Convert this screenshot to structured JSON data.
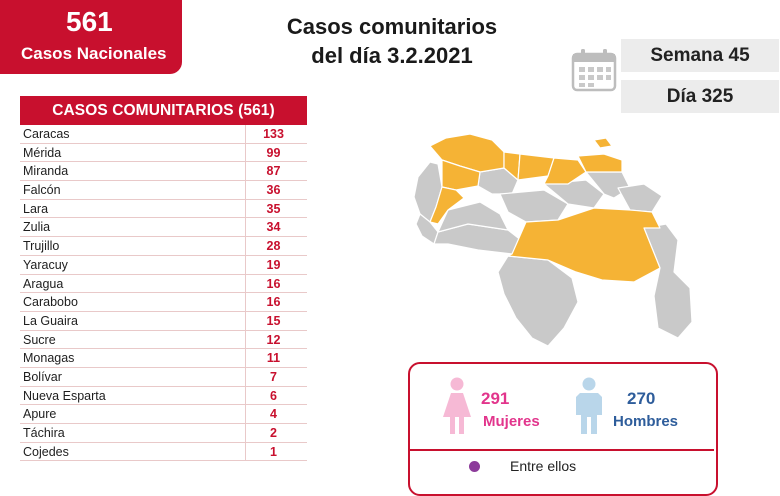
{
  "national": {
    "number": "561",
    "label": "Casos Nacionales"
  },
  "title": {
    "line1": "Casos comunitarios",
    "line2": "del día 3.2.2021"
  },
  "calendar": {
    "icon": "calendar-icon"
  },
  "week": {
    "label": "Semana 45"
  },
  "day": {
    "label": "Día 325"
  },
  "table": {
    "header": "CASOS COMUNITARIOS (561)",
    "rows": [
      {
        "state": "Caracas",
        "cases": "133"
      },
      {
        "state": "Mérida",
        "cases": "99"
      },
      {
        "state": "Miranda",
        "cases": "87"
      },
      {
        "state": "Falcón",
        "cases": "36"
      },
      {
        "state": "Lara",
        "cases": "35"
      },
      {
        "state": "Zulia",
        "cases": "34"
      },
      {
        "state": "Trujillo",
        "cases": "28"
      },
      {
        "state": "Yaracuy",
        "cases": "19"
      },
      {
        "state": "Aragua",
        "cases": "16"
      },
      {
        "state": "Carabobo",
        "cases": "16"
      },
      {
        "state": "La Guaira",
        "cases": "15"
      },
      {
        "state": "Sucre",
        "cases": "12"
      },
      {
        "state": "Monagas",
        "cases": "11"
      },
      {
        "state": "Bolívar",
        "cases": "7"
      },
      {
        "state": "Nueva Esparta",
        "cases": "6"
      },
      {
        "state": "Apure",
        "cases": "4"
      },
      {
        "state": "Táchira",
        "cases": "2"
      },
      {
        "state": "Cojedes",
        "cases": "1"
      }
    ]
  },
  "map": {
    "highlight_color": "#f5b335",
    "base_color": "#c9c9c9"
  },
  "gender": {
    "women": {
      "number": "291",
      "label": "Mujeres",
      "color": "#e2358c",
      "icon": "woman-icon"
    },
    "men": {
      "number": "270",
      "label": "Hombres",
      "color": "#2e5d9b",
      "icon": "man-icon"
    }
  },
  "footer": {
    "text": "Entre ellos"
  },
  "colors": {
    "brand": "#c8102e"
  }
}
